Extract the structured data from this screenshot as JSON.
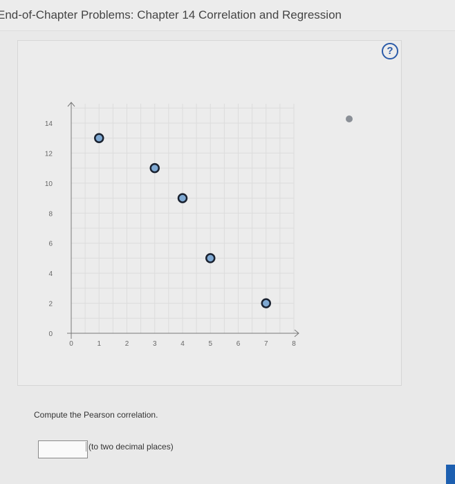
{
  "header": {
    "title": "End-of-Chapter Problems: Chapter 14 Correlation and Regression"
  },
  "help_icon": "question-circle-icon",
  "question": {
    "text": "Compute the Pearson correlation.",
    "answer_value": "",
    "hint": "(to two decimal places)"
  },
  "colors": {
    "point_fill": "#7fa9d3",
    "point_stroke": "#1a2230",
    "help": "#2a5aa8"
  },
  "chart_data": {
    "type": "scatter",
    "title": "",
    "xlabel": "",
    "ylabel": "",
    "xlim": [
      0,
      8
    ],
    "ylim": [
      0,
      14
    ],
    "x_ticks": [
      "0",
      "1",
      "2",
      "3",
      "4",
      "5",
      "6",
      "7",
      "8"
    ],
    "y_ticks": [
      "0",
      "2",
      "4",
      "6",
      "8",
      "10",
      "12",
      "14"
    ],
    "grid": true,
    "points": [
      {
        "x": 1,
        "y": 13
      },
      {
        "x": 3,
        "y": 11
      },
      {
        "x": 4,
        "y": 9
      },
      {
        "x": 5,
        "y": 5
      },
      {
        "x": 7,
        "y": 2
      }
    ]
  }
}
